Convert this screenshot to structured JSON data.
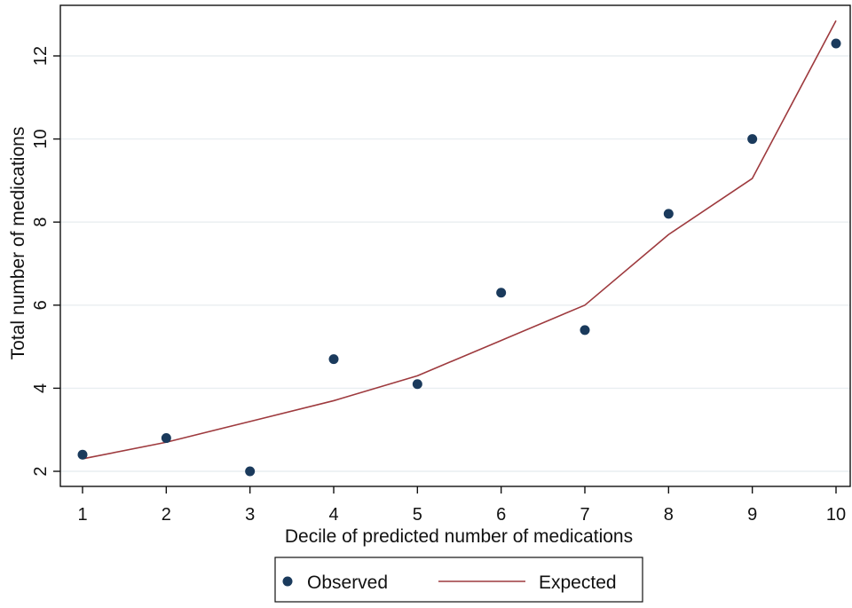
{
  "chart_data": {
    "type": "line",
    "title": "",
    "xlabel": "Decile of predicted number of medications",
    "ylabel": "Total number of medications",
    "x": [
      1,
      2,
      3,
      4,
      5,
      6,
      7,
      8,
      9,
      10
    ],
    "xticks": [
      "1",
      "2",
      "3",
      "4",
      "5",
      "6",
      "7",
      "8",
      "9",
      "10"
    ],
    "yticks": [
      "2",
      "4",
      "6",
      "8",
      "10",
      "12"
    ],
    "xlim": [
      1,
      10
    ],
    "ylim": [
      2,
      12.8
    ],
    "grid": "horizontal",
    "legend_position": "bottom",
    "series": [
      {
        "name": "Observed",
        "kind": "scatter",
        "marker": "circle",
        "color": "#1a3a5c",
        "values": [
          2.4,
          2.8,
          2.0,
          4.7,
          4.1,
          6.3,
          5.4,
          8.2,
          10.0,
          12.3
        ]
      },
      {
        "name": "Expected",
        "kind": "line",
        "color": "#9e3a3e",
        "values": [
          2.3,
          2.7,
          3.2,
          3.7,
          4.3,
          5.15,
          6.0,
          7.7,
          9.05,
          12.85
        ]
      }
    ]
  }
}
